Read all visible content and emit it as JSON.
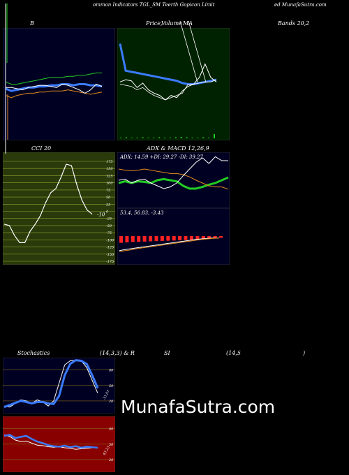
{
  "header": {
    "left": "ommon  Indicators TGL_SM Teerth Gopicon  Limit",
    "right": "ed MunafaSutra.com"
  },
  "labels": {
    "bollinger": "B",
    "price_ma": "Price,",
    "volume": "Volume",
    "ma": "MA",
    "bands": "Bands 20,2",
    "cci": "CCI 20",
    "adx_macd": "ADX  & MACD 12,26,9",
    "stoch_left": "Stochastics",
    "stoch_params": "(14,3,3) & R",
    "rsi": "SI",
    "rsi_params": "(14,5",
    "rsi_close": ")"
  },
  "watermark": "MunafaSutra.com",
  "colors": {
    "navy": "#000022",
    "darkgreen": "#002200",
    "olive": "#2a3a0a",
    "darkred": "#880000",
    "blue": "#3b7bff",
    "green": "#22cc22",
    "orange": "#e08a1a",
    "white": "#ffffff",
    "gridgold": "#8a6a1a",
    "gridolive": "#8fa030"
  },
  "chart_data": [
    {
      "type": "line",
      "id": "bollinger",
      "title": "B",
      "series": [
        {
          "values": [
            0.46,
            0.44,
            0.45,
            0.46,
            0.47,
            0.47,
            0.48,
            0.48,
            0.49,
            0.49,
            0.5,
            0.5,
            0.49,
            0.5,
            0.5,
            0.49,
            0.49,
            0.48
          ]
        },
        {
          "values": [
            0.4,
            0.38,
            0.4,
            0.41,
            0.42,
            0.42,
            0.43,
            0.43,
            0.44,
            0.44,
            0.44,
            0.45,
            0.44,
            0.43,
            0.42,
            0.41,
            0.42,
            0.43
          ]
        },
        {
          "values": [
            0.52,
            0.5,
            0.5,
            0.51,
            0.52,
            0.53,
            0.54,
            0.55,
            0.56,
            0.56,
            0.56,
            0.57,
            0.57,
            0.58,
            0.58,
            0.59,
            0.6,
            0.6
          ]
        },
        {
          "values": [
            0.47,
            0.47,
            0.46,
            0.45,
            0.47,
            0.48,
            0.49,
            0.49,
            0.48,
            0.47,
            0.5,
            0.49,
            0.47,
            0.45,
            0.42,
            0.45,
            0.5,
            0.48
          ]
        }
      ]
    },
    {
      "type": "line",
      "id": "price_ma",
      "title": "Price, Volume MA",
      "series": [
        {
          "values": [
            0.14,
            0.38,
            0.39,
            0.4,
            0.41,
            0.42,
            0.43,
            0.44,
            0.45,
            0.46,
            0.47,
            0.49,
            0.5,
            0.5,
            0.49,
            0.48,
            0.47,
            0.46
          ]
        },
        {
          "values": [
            0.48,
            0.46,
            0.47,
            0.53,
            0.49,
            0.55,
            0.58,
            0.6,
            0.64,
            0.6,
            0.62,
            0.56,
            0.52,
            0.5,
            0.44,
            0.32,
            0.44,
            0.48
          ]
        },
        {
          "values": [
            0.5,
            0.51,
            0.52,
            0.55,
            0.53,
            0.57,
            0.6,
            0.62,
            0.64,
            0.62,
            0.6,
            0.58,
            0.5,
            0.5,
            0.49,
            0.48,
            0.48,
            0.46
          ]
        }
      ],
      "volume": [
        2,
        3,
        2,
        2,
        3,
        2,
        2,
        3,
        2,
        2,
        3,
        4,
        3,
        2,
        2,
        3,
        2,
        12
      ]
    },
    {
      "type": "line",
      "id": "cci",
      "title": "CCI 20",
      "y_ticks": [
        175,
        150,
        125,
        100,
        75,
        50,
        25,
        0,
        -25,
        -50,
        -75,
        -100,
        -125,
        -150,
        -175
      ],
      "last_label": "-10",
      "series": [
        {
          "values": [
            -45,
            -50,
            -85,
            -110,
            -110,
            -70,
            -45,
            -15,
            30,
            65,
            80,
            120,
            165,
            160,
            95,
            40,
            5,
            -10
          ]
        }
      ]
    },
    {
      "type": "line",
      "id": "adx",
      "title": "ADX: 14.59  +DI: 29.27 -DI: 39.27",
      "series": [
        {
          "values": [
            0.55,
            0.52,
            0.55,
            0.52,
            0.53,
            0.55,
            0.5,
            0.48,
            0.5,
            0.52,
            0.6,
            0.65,
            0.65,
            0.62,
            0.58,
            0.55,
            0.5,
            0.45
          ]
        },
        {
          "values": [
            0.3,
            0.32,
            0.33,
            0.32,
            0.3,
            0.32,
            0.34,
            0.36,
            0.38,
            0.38,
            0.4,
            0.44,
            0.5,
            0.55,
            0.6,
            0.62,
            0.62,
            0.66
          ]
        },
        {
          "values": [
            0.5,
            0.48,
            0.55,
            0.5,
            0.48,
            0.55,
            0.6,
            0.65,
            0.62,
            0.55,
            0.42,
            0.3,
            0.18,
            0.1,
            0.2,
            0.08,
            0.15,
            0.15
          ]
        }
      ]
    },
    {
      "type": "line",
      "id": "macd",
      "title": "53.4,  56.83,  -3.43",
      "series": [
        {
          "values": [
            0.48,
            0.52,
            0.55,
            0.58,
            0.61,
            0.64,
            0.67,
            0.7,
            0.73,
            0.76,
            0.79,
            0.82,
            0.85,
            0.88,
            0.9,
            0.92,
            0.93,
            0.93
          ]
        },
        {
          "values": [
            0.44,
            0.48,
            0.51,
            0.55,
            0.58,
            0.61,
            0.64,
            0.67,
            0.7,
            0.73,
            0.76,
            0.79,
            0.82,
            0.85,
            0.88,
            0.9,
            0.92,
            0.93
          ]
        }
      ],
      "histogram": [
        0.32,
        0.3,
        0.28,
        0.27,
        0.26,
        0.25,
        0.24,
        0.23,
        0.22,
        0.21,
        0.2,
        0.19,
        0.18,
        0.16,
        0.14,
        0.12,
        0.1,
        0.08
      ]
    },
    {
      "type": "line",
      "id": "stochastics",
      "y_ticks": [
        80,
        50,
        20
      ],
      "last_label": "33.57",
      "series": [
        {
          "values": [
            10,
            8,
            15,
            22,
            20,
            15,
            22,
            18,
            10,
            20,
            55,
            90,
            98,
            99,
            98,
            85,
            60,
            35
          ]
        },
        {
          "values": [
            8,
            12,
            16,
            20,
            18,
            15,
            18,
            18,
            15,
            14,
            30,
            70,
            92,
            99,
            98,
            92,
            70,
            45
          ]
        }
      ]
    },
    {
      "type": "line",
      "id": "rsi",
      "y_ticks": [
        80,
        50,
        20
      ],
      "last_label": "43.23",
      "series": [
        {
          "values": [
            68,
            65,
            58,
            55,
            56,
            52,
            48,
            47,
            45,
            44,
            45,
            43,
            42,
            40,
            41,
            42,
            43,
            43
          ]
        },
        {
          "values": [
            66,
            68,
            62,
            64,
            66,
            60,
            55,
            52,
            48,
            46,
            45,
            47,
            44,
            46,
            43,
            45,
            44,
            43
          ]
        }
      ]
    }
  ]
}
